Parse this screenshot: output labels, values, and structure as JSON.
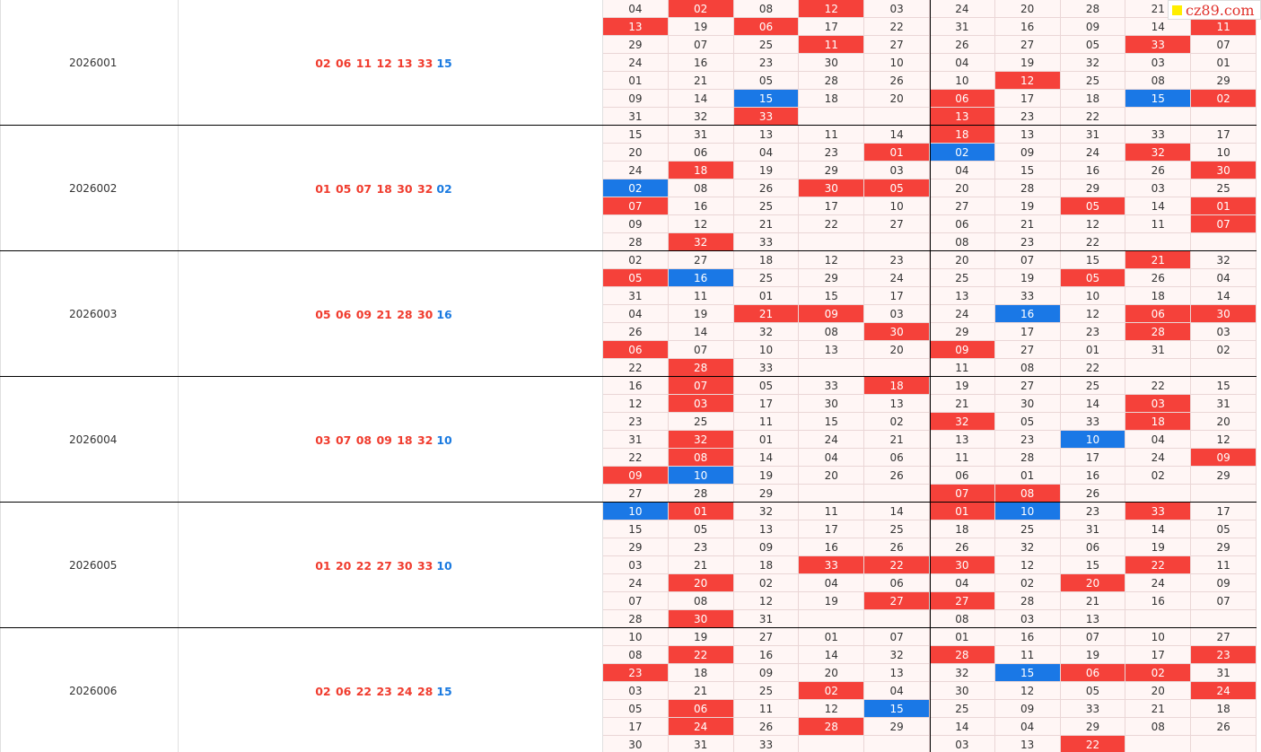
{
  "watermark": "cz89.com",
  "groups": [
    {
      "issue": "2026001",
      "red": "02 06 11 12 13 33",
      "blue": "15",
      "grid": [
        [
          "04",
          {
            "text": "02",
            "color": "red"
          },
          "08",
          {
            "text": "12",
            "color": "red"
          },
          "03",
          "24",
          "20",
          "28",
          "21",
          null
        ],
        [
          {
            "text": "13",
            "color": "red"
          },
          "19",
          {
            "text": "06",
            "color": "red"
          },
          "17",
          "22",
          "31",
          "16",
          "09",
          "14",
          {
            "text": "11",
            "color": "red"
          }
        ],
        [
          "29",
          "07",
          "25",
          {
            "text": "11",
            "color": "red"
          },
          "27",
          "26",
          "27",
          "05",
          {
            "text": "33",
            "color": "red"
          },
          "07"
        ],
        [
          "24",
          "16",
          "23",
          "30",
          "10",
          "04",
          "19",
          "32",
          "03",
          "01"
        ],
        [
          "01",
          "21",
          "05",
          "28",
          "26",
          "10",
          {
            "text": "12",
            "color": "red"
          },
          "25",
          "08",
          "29"
        ],
        [
          "09",
          "14",
          {
            "text": "15",
            "color": "blue"
          },
          "18",
          "20",
          {
            "text": "06",
            "color": "red"
          },
          "17",
          "18",
          {
            "text": "15",
            "color": "blue"
          },
          {
            "text": "02",
            "color": "red"
          }
        ],
        [
          "31",
          "32",
          {
            "text": "33",
            "color": "red"
          },
          null,
          null,
          {
            "text": "13",
            "color": "red"
          },
          "23",
          "22",
          null,
          null
        ]
      ]
    },
    {
      "issue": "2026002",
      "red": "01 05 07 18 30 32",
      "blue": "02",
      "grid": [
        [
          "15",
          "31",
          "13",
          "11",
          "14",
          {
            "text": "18",
            "color": "red"
          },
          "13",
          "31",
          "33",
          "17"
        ],
        [
          "20",
          "06",
          "04",
          "23",
          {
            "text": "01",
            "color": "red"
          },
          {
            "text": "02",
            "color": "blue"
          },
          "09",
          "24",
          {
            "text": "32",
            "color": "red"
          },
          "10"
        ],
        [
          "24",
          {
            "text": "18",
            "color": "red"
          },
          "19",
          "29",
          "03",
          "04",
          "15",
          "16",
          "26",
          {
            "text": "30",
            "color": "red"
          }
        ],
        [
          {
            "text": "02",
            "color": "blue"
          },
          "08",
          "26",
          {
            "text": "30",
            "color": "red"
          },
          {
            "text": "05",
            "color": "red"
          },
          "20",
          "28",
          "29",
          "03",
          "25"
        ],
        [
          {
            "text": "07",
            "color": "red"
          },
          "16",
          "25",
          "17",
          "10",
          "27",
          "19",
          {
            "text": "05",
            "color": "red"
          },
          "14",
          {
            "text": "01",
            "color": "red"
          }
        ],
        [
          "09",
          "12",
          "21",
          "22",
          "27",
          "06",
          "21",
          "12",
          "11",
          {
            "text": "07",
            "color": "red"
          }
        ],
        [
          "28",
          {
            "text": "32",
            "color": "red"
          },
          "33",
          null,
          null,
          "08",
          "23",
          "22",
          null,
          null
        ]
      ]
    },
    {
      "issue": "2026003",
      "red": "05 06 09 21 28 30",
      "blue": "16",
      "grid": [
        [
          "02",
          "27",
          "18",
          "12",
          "23",
          "20",
          "07",
          "15",
          {
            "text": "21",
            "color": "red"
          },
          "32"
        ],
        [
          {
            "text": "05",
            "color": "red"
          },
          {
            "text": "16",
            "color": "blue"
          },
          "25",
          "29",
          "24",
          "25",
          "19",
          {
            "text": "05",
            "color": "red"
          },
          "26",
          "04"
        ],
        [
          "31",
          "11",
          "01",
          "15",
          "17",
          "13",
          "33",
          "10",
          "18",
          "14"
        ],
        [
          "04",
          "19",
          {
            "text": "21",
            "color": "red"
          },
          {
            "text": "09",
            "color": "red"
          },
          "03",
          "24",
          {
            "text": "16",
            "color": "blue"
          },
          "12",
          {
            "text": "06",
            "color": "red"
          },
          {
            "text": "30",
            "color": "red"
          }
        ],
        [
          "26",
          "14",
          "32",
          "08",
          {
            "text": "30",
            "color": "red"
          },
          "29",
          "17",
          "23",
          {
            "text": "28",
            "color": "red"
          },
          "03"
        ],
        [
          {
            "text": "06",
            "color": "red"
          },
          "07",
          "10",
          "13",
          "20",
          {
            "text": "09",
            "color": "red"
          },
          "27",
          "01",
          "31",
          "02"
        ],
        [
          "22",
          {
            "text": "28",
            "color": "red"
          },
          "33",
          null,
          null,
          "11",
          "08",
          "22",
          null,
          null
        ]
      ]
    },
    {
      "issue": "2026004",
      "red": "03 07 08 09 18 32",
      "blue": "10",
      "grid": [
        [
          "16",
          {
            "text": "07",
            "color": "red"
          },
          "05",
          "33",
          {
            "text": "18",
            "color": "red"
          },
          "19",
          "27",
          "25",
          "22",
          "15"
        ],
        [
          "12",
          {
            "text": "03",
            "color": "red"
          },
          "17",
          "30",
          "13",
          "21",
          "30",
          "14",
          {
            "text": "03",
            "color": "red"
          },
          "31"
        ],
        [
          "23",
          "25",
          "11",
          "15",
          "02",
          {
            "text": "32",
            "color": "red"
          },
          "05",
          "33",
          {
            "text": "18",
            "color": "red"
          },
          "20"
        ],
        [
          "31",
          {
            "text": "32",
            "color": "red"
          },
          "01",
          "24",
          "21",
          "13",
          "23",
          {
            "text": "10",
            "color": "blue"
          },
          "04",
          "12"
        ],
        [
          "22",
          {
            "text": "08",
            "color": "red"
          },
          "14",
          "04",
          "06",
          "11",
          "28",
          "17",
          "24",
          {
            "text": "09",
            "color": "red"
          }
        ],
        [
          {
            "text": "09",
            "color": "red"
          },
          {
            "text": "10",
            "color": "blue"
          },
          "19",
          "20",
          "26",
          "06",
          "01",
          "16",
          "02",
          "29"
        ],
        [
          "27",
          "28",
          "29",
          null,
          null,
          {
            "text": "07",
            "color": "red"
          },
          {
            "text": "08",
            "color": "red"
          },
          "26",
          null,
          null
        ]
      ]
    },
    {
      "issue": "2026005",
      "red": "01 20 22 27 30 33",
      "blue": "10",
      "grid": [
        [
          {
            "text": "10",
            "color": "blue"
          },
          {
            "text": "01",
            "color": "red"
          },
          "32",
          "11",
          "14",
          {
            "text": "01",
            "color": "red"
          },
          {
            "text": "10",
            "color": "blue"
          },
          "23",
          {
            "text": "33",
            "color": "red"
          },
          "17"
        ],
        [
          "15",
          "05",
          "13",
          "17",
          "25",
          "18",
          "25",
          "31",
          "14",
          "05"
        ],
        [
          "29",
          "23",
          "09",
          "16",
          "26",
          "26",
          "32",
          "06",
          "19",
          "29"
        ],
        [
          "03",
          "21",
          "18",
          {
            "text": "33",
            "color": "red"
          },
          {
            "text": "22",
            "color": "red"
          },
          {
            "text": "30",
            "color": "red"
          },
          "12",
          "15",
          {
            "text": "22",
            "color": "red"
          },
          "11"
        ],
        [
          "24",
          {
            "text": "20",
            "color": "red"
          },
          "02",
          "04",
          "06",
          "04",
          "02",
          {
            "text": "20",
            "color": "red"
          },
          "24",
          "09"
        ],
        [
          "07",
          "08",
          "12",
          "19",
          {
            "text": "27",
            "color": "red"
          },
          {
            "text": "27",
            "color": "red"
          },
          "28",
          "21",
          "16",
          "07"
        ],
        [
          "28",
          {
            "text": "30",
            "color": "red"
          },
          "31",
          null,
          null,
          "08",
          "03",
          "13",
          null,
          null
        ]
      ]
    },
    {
      "issue": "2026006",
      "red": "02 06 22 23 24 28",
      "blue": "15",
      "grid": [
        [
          "10",
          "19",
          "27",
          "01",
          "07",
          "01",
          "16",
          "07",
          "10",
          "27"
        ],
        [
          "08",
          {
            "text": "22",
            "color": "red"
          },
          "16",
          "14",
          "32",
          {
            "text": "28",
            "color": "red"
          },
          "11",
          "19",
          "17",
          {
            "text": "23",
            "color": "red"
          }
        ],
        [
          {
            "text": "23",
            "color": "red"
          },
          "18",
          "09",
          "20",
          "13",
          "32",
          {
            "text": "15",
            "color": "blue"
          },
          {
            "text": "06",
            "color": "red"
          },
          {
            "text": "02",
            "color": "red"
          },
          "31"
        ],
        [
          "03",
          "21",
          "25",
          {
            "text": "02",
            "color": "red"
          },
          "04",
          "30",
          "12",
          "05",
          "20",
          {
            "text": "24",
            "color": "red"
          }
        ],
        [
          "05",
          {
            "text": "06",
            "color": "red"
          },
          "11",
          "12",
          {
            "text": "15",
            "color": "blue"
          },
          "25",
          "09",
          "33",
          "21",
          "18"
        ],
        [
          "17",
          {
            "text": "24",
            "color": "red"
          },
          "26",
          {
            "text": "28",
            "color": "red"
          },
          "29",
          "14",
          "04",
          "29",
          "08",
          "26"
        ],
        [
          "30",
          "31",
          "33",
          null,
          null,
          "03",
          "13",
          {
            "text": "22",
            "color": "red"
          },
          null,
          null
        ]
      ]
    }
  ]
}
